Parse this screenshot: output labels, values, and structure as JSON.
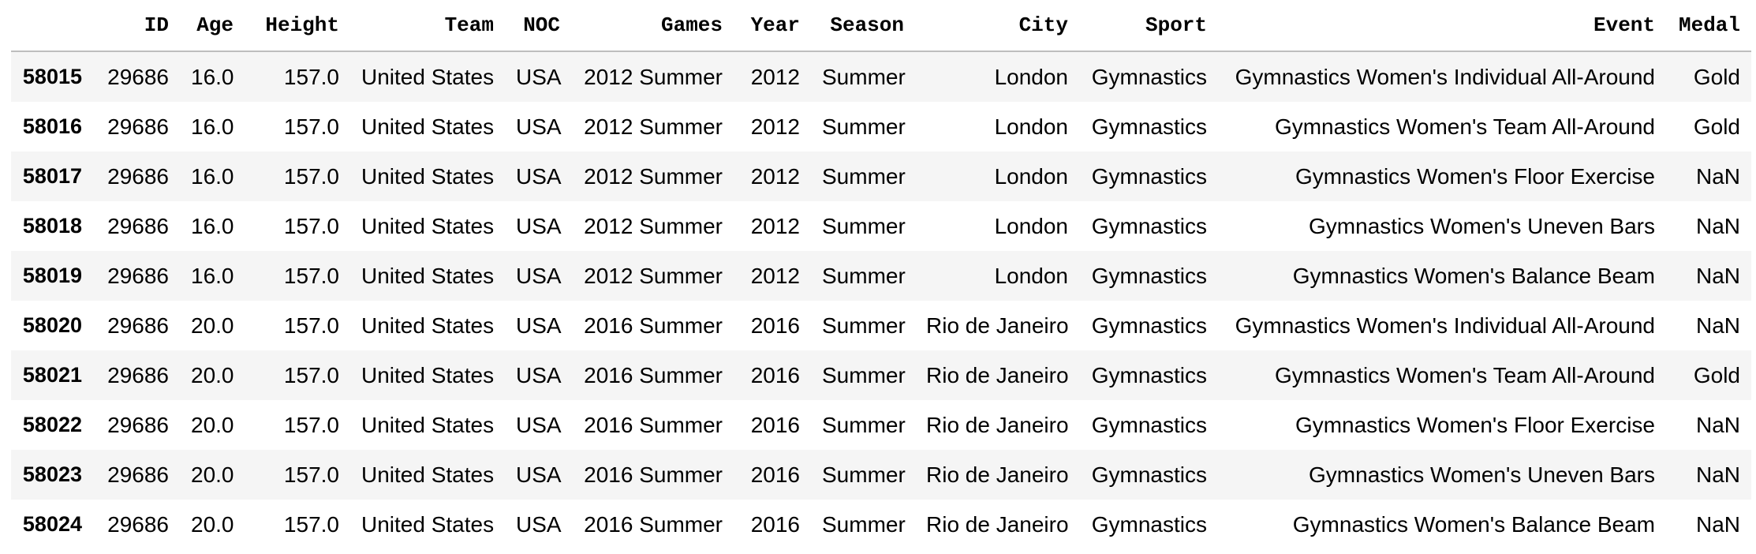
{
  "table": {
    "index_header": "",
    "columns": [
      "ID",
      "Age",
      "Height",
      "Team",
      "NOC",
      "Games",
      "Year",
      "Season",
      "City",
      "Sport",
      "Event",
      "Medal"
    ],
    "rows": [
      {
        "index": "58015",
        "cells": [
          "29686",
          "16.0",
          "157.0",
          "United States",
          "USA",
          "2012 Summer",
          "2012",
          "Summer",
          "London",
          "Gymnastics",
          "Gymnastics Women's Individual All-Around",
          "Gold"
        ]
      },
      {
        "index": "58016",
        "cells": [
          "29686",
          "16.0",
          "157.0",
          "United States",
          "USA",
          "2012 Summer",
          "2012",
          "Summer",
          "London",
          "Gymnastics",
          "Gymnastics Women's Team All-Around",
          "Gold"
        ]
      },
      {
        "index": "58017",
        "cells": [
          "29686",
          "16.0",
          "157.0",
          "United States",
          "USA",
          "2012 Summer",
          "2012",
          "Summer",
          "London",
          "Gymnastics",
          "Gymnastics Women's Floor Exercise",
          "NaN"
        ]
      },
      {
        "index": "58018",
        "cells": [
          "29686",
          "16.0",
          "157.0",
          "United States",
          "USA",
          "2012 Summer",
          "2012",
          "Summer",
          "London",
          "Gymnastics",
          "Gymnastics Women's Uneven Bars",
          "NaN"
        ]
      },
      {
        "index": "58019",
        "cells": [
          "29686",
          "16.0",
          "157.0",
          "United States",
          "USA",
          "2012 Summer",
          "2012",
          "Summer",
          "London",
          "Gymnastics",
          "Gymnastics Women's Balance Beam",
          "NaN"
        ]
      },
      {
        "index": "58020",
        "cells": [
          "29686",
          "20.0",
          "157.0",
          "United States",
          "USA",
          "2016 Summer",
          "2016",
          "Summer",
          "Rio de Janeiro",
          "Gymnastics",
          "Gymnastics Women's Individual All-Around",
          "NaN"
        ]
      },
      {
        "index": "58021",
        "cells": [
          "29686",
          "20.0",
          "157.0",
          "United States",
          "USA",
          "2016 Summer",
          "2016",
          "Summer",
          "Rio de Janeiro",
          "Gymnastics",
          "Gymnastics Women's Team All-Around",
          "Gold"
        ]
      },
      {
        "index": "58022",
        "cells": [
          "29686",
          "20.0",
          "157.0",
          "United States",
          "USA",
          "2016 Summer",
          "2016",
          "Summer",
          "Rio de Janeiro",
          "Gymnastics",
          "Gymnastics Women's Floor Exercise",
          "NaN"
        ]
      },
      {
        "index": "58023",
        "cells": [
          "29686",
          "20.0",
          "157.0",
          "United States",
          "USA",
          "2016 Summer",
          "2016",
          "Summer",
          "Rio de Janeiro",
          "Gymnastics",
          "Gymnastics Women's Uneven Bars",
          "NaN"
        ]
      },
      {
        "index": "58024",
        "cells": [
          "29686",
          "20.0",
          "157.0",
          "United States",
          "USA",
          "2016 Summer",
          "2016",
          "Summer",
          "Rio de Janeiro",
          "Gymnastics",
          "Gymnastics Women's Balance Beam",
          "NaN"
        ]
      }
    ]
  }
}
